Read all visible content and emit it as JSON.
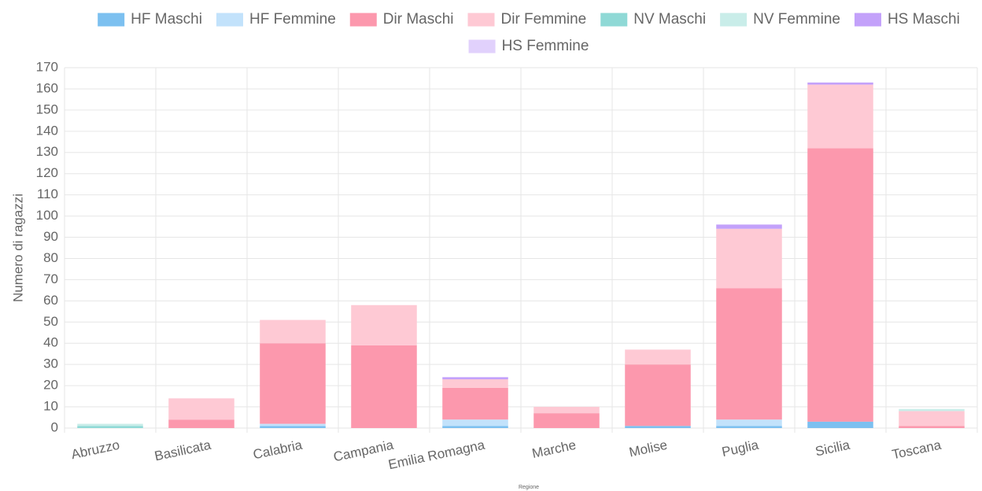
{
  "chart_data": {
    "type": "stacked_bar",
    "xlabel": "Regione",
    "ylabel": "Numero di ragazzi",
    "categories": [
      "Abruzzo",
      "Basilicata",
      "Calabria",
      "Campania",
      "Emilia Romagna",
      "Marche",
      "Molise",
      "Puglia",
      "Sicilia",
      "Toscana"
    ],
    "series": [
      {
        "name": "HF Maschi",
        "color": "#7cc0f0",
        "values": [
          0,
          0,
          1,
          0,
          1,
          0,
          1,
          1,
          3,
          0
        ]
      },
      {
        "name": "HF Femmine",
        "color": "#c2e2fb",
        "values": [
          0,
          0,
          1,
          0,
          3,
          0,
          0,
          3,
          0,
          0
        ]
      },
      {
        "name": "Dir Maschi",
        "color": "#fc98ad",
        "values": [
          0,
          4,
          38,
          39,
          15,
          7,
          29,
          62,
          129,
          1
        ]
      },
      {
        "name": "Dir Femmine",
        "color": "#fec9d4",
        "values": [
          0,
          10,
          11,
          19,
          4,
          3,
          7,
          28,
          30,
          7
        ]
      },
      {
        "name": "NV Maschi",
        "color": "#8fd9d6",
        "values": [
          1,
          0,
          0,
          0,
          0,
          0,
          0,
          0,
          0,
          0
        ]
      },
      {
        "name": "NV Femmine",
        "color": "#c9ede9",
        "values": [
          1,
          0,
          0,
          0,
          0,
          0,
          0,
          0,
          0,
          1
        ]
      },
      {
        "name": "HS Maschi",
        "color": "#c3a1fa",
        "values": [
          0,
          0,
          0,
          0,
          1,
          0,
          0,
          2,
          1,
          0
        ]
      },
      {
        "name": "HS Femmine",
        "color": "#e1d1fc",
        "values": [
          0,
          0,
          0,
          0,
          0,
          0,
          0,
          0,
          0,
          0
        ]
      }
    ],
    "ylim": [
      0,
      170
    ],
    "yticks": [
      0,
      10,
      20,
      30,
      40,
      50,
      60,
      70,
      80,
      90,
      100,
      110,
      120,
      130,
      140,
      150,
      160,
      170
    ],
    "grid": true,
    "legend": "top"
  }
}
